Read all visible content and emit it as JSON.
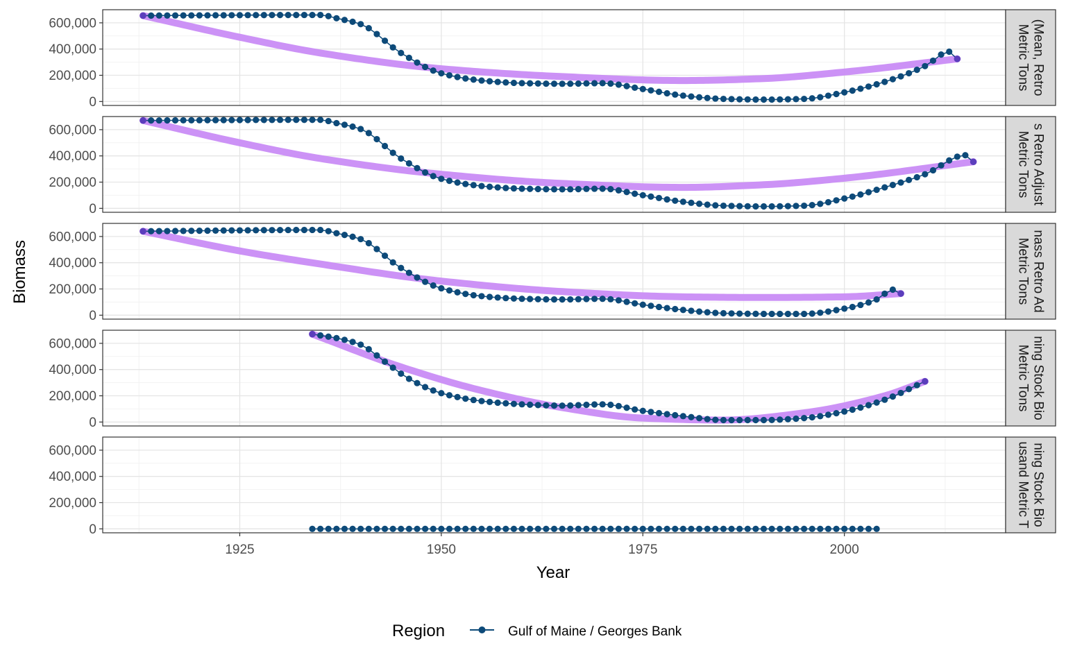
{
  "chart_data": {
    "type": "line",
    "xlabel": "Year",
    "ylabel": "Biomass",
    "xlim": [
      1908,
      2020
    ],
    "ylim": [
      -30000,
      700000
    ],
    "x_ticks": [
      1925,
      1950,
      1975,
      2000
    ],
    "x_tick_labels": [
      "1925",
      "1950",
      "1975",
      "2000"
    ],
    "y_ticks": [
      0,
      200000,
      400000,
      600000
    ],
    "y_tick_labels": [
      "0",
      "200,000",
      "400,000",
      "600,000"
    ],
    "grid": true,
    "legend": {
      "position": "bottom",
      "title": "Region",
      "entries": [
        "Gulf of Maine / Georges Bank"
      ]
    },
    "colors": {
      "points": "#0d4a79",
      "smooth": "#c98cf5",
      "smooth_end_points": "#6a3cc8",
      "strip_bg": "#d9d9d9"
    },
    "panels": [
      {
        "strip_lines": [
          "(Mean, Retro",
          "Metric Tons"
        ],
        "series": [
          {
            "name": "Gulf of Maine / Georges Bank",
            "start_year": 1913,
            "end_year": 2014,
            "knots": [
              [
                1913,
                655000
              ],
              [
                1935,
                660000
              ],
              [
                1937,
                635000
              ],
              [
                1940,
                590000
              ],
              [
                1945,
                370000
              ],
              [
                1950,
                215000
              ],
              [
                1955,
                160000
              ],
              [
                1960,
                140000
              ],
              [
                1965,
                135000
              ],
              [
                1970,
                140000
              ],
              [
                1975,
                95000
              ],
              [
                1980,
                45000
              ],
              [
                1985,
                20000
              ],
              [
                1990,
                15000
              ],
              [
                1995,
                20000
              ],
              [
                2000,
                70000
              ],
              [
                2005,
                150000
              ],
              [
                2010,
                270000
              ],
              [
                2013,
                380000
              ],
              [
                2014,
                325000
              ]
            ]
          }
        ],
        "smooth": [
          [
            1913,
            655000
          ],
          [
            1925,
            490000
          ],
          [
            1935,
            370000
          ],
          [
            1950,
            250000
          ],
          [
            1965,
            190000
          ],
          [
            1980,
            160000
          ],
          [
            1990,
            175000
          ],
          [
            2000,
            225000
          ],
          [
            2014,
            325000
          ]
        ]
      },
      {
        "strip_lines": [
          "s Retro Adjust",
          "Metric Tons"
        ],
        "series": [
          {
            "name": "Gulf of Maine / Georges Bank",
            "start_year": 1913,
            "end_year": 2016,
            "knots": [
              [
                1913,
                670000
              ],
              [
                1935,
                675000
              ],
              [
                1937,
                650000
              ],
              [
                1940,
                605000
              ],
              [
                1945,
                380000
              ],
              [
                1950,
                225000
              ],
              [
                1955,
                170000
              ],
              [
                1960,
                150000
              ],
              [
                1965,
                145000
              ],
              [
                1970,
                150000
              ],
              [
                1975,
                100000
              ],
              [
                1980,
                50000
              ],
              [
                1985,
                20000
              ],
              [
                1990,
                15000
              ],
              [
                1995,
                20000
              ],
              [
                2000,
                75000
              ],
              [
                2005,
                160000
              ],
              [
                2010,
                260000
              ],
              [
                2015,
                405000
              ],
              [
                2016,
                355000
              ]
            ]
          }
        ],
        "smooth": [
          [
            1913,
            670000
          ],
          [
            1925,
            500000
          ],
          [
            1935,
            380000
          ],
          [
            1950,
            260000
          ],
          [
            1965,
            190000
          ],
          [
            1980,
            160000
          ],
          [
            1990,
            180000
          ],
          [
            2000,
            230000
          ],
          [
            2016,
            355000
          ]
        ]
      },
      {
        "strip_lines": [
          "nass Retro Ad",
          "Metric Tons"
        ],
        "series": [
          {
            "name": "Gulf of Maine / Georges Bank",
            "start_year": 1913,
            "end_year": 2007,
            "knots": [
              [
                1913,
                640000
              ],
              [
                1935,
                650000
              ],
              [
                1937,
                625000
              ],
              [
                1940,
                580000
              ],
              [
                1945,
                360000
              ],
              [
                1950,
                205000
              ],
              [
                1955,
                145000
              ],
              [
                1960,
                125000
              ],
              [
                1965,
                120000
              ],
              [
                1970,
                125000
              ],
              [
                1975,
                80000
              ],
              [
                1980,
                40000
              ],
              [
                1985,
                15000
              ],
              [
                1990,
                10000
              ],
              [
                1995,
                10000
              ],
              [
                2000,
                50000
              ],
              [
                2004,
                120000
              ],
              [
                2006,
                195000
              ],
              [
                2007,
                165000
              ]
            ]
          }
        ],
        "smooth": [
          [
            1913,
            640000
          ],
          [
            1925,
            490000
          ],
          [
            1935,
            390000
          ],
          [
            1950,
            260000
          ],
          [
            1965,
            180000
          ],
          [
            1980,
            140000
          ],
          [
            1990,
            135000
          ],
          [
            2000,
            140000
          ],
          [
            2007,
            165000
          ]
        ]
      },
      {
        "strip_lines": [
          "ning Stock Bio",
          "Metric Tons"
        ],
        "series": [
          {
            "name": "Gulf of Maine / Georges Bank",
            "start_year": 1934,
            "end_year": 2010,
            "knots": [
              [
                1934,
                670000
              ],
              [
                1937,
                640000
              ],
              [
                1940,
                590000
              ],
              [
                1943,
                460000
              ],
              [
                1946,
                330000
              ],
              [
                1950,
                220000
              ],
              [
                1955,
                160000
              ],
              [
                1960,
                135000
              ],
              [
                1965,
                125000
              ],
              [
                1970,
                135000
              ],
              [
                1975,
                85000
              ],
              [
                1980,
                45000
              ],
              [
                1985,
                15000
              ],
              [
                1990,
                15000
              ],
              [
                1995,
                30000
              ],
              [
                2000,
                80000
              ],
              [
                2005,
                170000
              ],
              [
                2010,
                310000
              ]
            ]
          }
        ],
        "smooth": [
          [
            1934,
            670000
          ],
          [
            1945,
            420000
          ],
          [
            1955,
            240000
          ],
          [
            1965,
            110000
          ],
          [
            1975,
            30000
          ],
          [
            1985,
            15000
          ],
          [
            1995,
            70000
          ],
          [
            2005,
            200000
          ],
          [
            2010,
            310000
          ]
        ]
      },
      {
        "strip_lines": [
          "ning Stock Bio",
          "usand Metric T"
        ],
        "series": [
          {
            "name": "Gulf of Maine / Georges Bank",
            "start_year": 1934,
            "end_year": 2004,
            "knots": [
              [
                1934,
                0
              ],
              [
                2004,
                0
              ]
            ]
          }
        ],
        "smooth": []
      }
    ]
  }
}
